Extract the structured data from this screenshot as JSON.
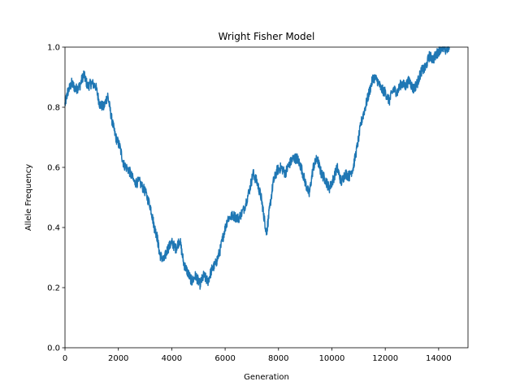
{
  "chart_data": {
    "type": "line",
    "title": "Wright Fisher Model",
    "xlabel": "Generation",
    "ylabel": "Allele Frequency",
    "xlim": [
      0,
      15100
    ],
    "ylim": [
      0.0,
      1.0
    ],
    "xticks": [
      0,
      2000,
      4000,
      6000,
      8000,
      10000,
      12000,
      14000
    ],
    "yticks": [
      0.0,
      0.2,
      0.4,
      0.6,
      0.8,
      1.0
    ],
    "xtick_labels": [
      "0",
      "2000",
      "4000",
      "6000",
      "8000",
      "10000",
      "12000",
      "14000"
    ],
    "ytick_labels": [
      "0.0",
      "0.2",
      "0.4",
      "0.6",
      "0.8",
      "1.0"
    ],
    "grid": false,
    "series": [
      {
        "color": "#1f77b4",
        "x": [
          0,
          100,
          250,
          400,
          550,
          700,
          850,
          1000,
          1150,
          1300,
          1450,
          1600,
          1750,
          1900,
          2050,
          2200,
          2400,
          2600,
          2800,
          3000,
          3200,
          3350,
          3450,
          3550,
          3700,
          3850,
          4000,
          4150,
          4300,
          4450,
          4600,
          4750,
          4900,
          5050,
          5200,
          5350,
          5500,
          5650,
          5800,
          5950,
          6100,
          6300,
          6500,
          6700,
          6900,
          7050,
          7200,
          7350,
          7450,
          7550,
          7650,
          7800,
          7950,
          8100,
          8250,
          8400,
          8550,
          8700,
          8850,
          9000,
          9150,
          9300,
          9450,
          9600,
          9750,
          9900,
          10050,
          10200,
          10350,
          10500,
          10650,
          10800,
          10950,
          11100,
          11250,
          11400,
          11550,
          11700,
          11850,
          12000,
          12150,
          12300,
          12450,
          12600,
          12750,
          12900,
          13050,
          13200,
          13350,
          13500,
          13650,
          13800,
          13950,
          14100,
          14250,
          14400
        ],
        "y": [
          0.81,
          0.85,
          0.88,
          0.86,
          0.87,
          0.91,
          0.87,
          0.88,
          0.87,
          0.81,
          0.8,
          0.84,
          0.76,
          0.7,
          0.67,
          0.61,
          0.59,
          0.55,
          0.55,
          0.52,
          0.47,
          0.4,
          0.37,
          0.31,
          0.29,
          0.33,
          0.35,
          0.33,
          0.36,
          0.28,
          0.25,
          0.22,
          0.24,
          0.21,
          0.24,
          0.22,
          0.26,
          0.28,
          0.32,
          0.38,
          0.43,
          0.44,
          0.43,
          0.46,
          0.52,
          0.58,
          0.55,
          0.5,
          0.44,
          0.38,
          0.45,
          0.55,
          0.59,
          0.6,
          0.58,
          0.61,
          0.63,
          0.63,
          0.6,
          0.55,
          0.51,
          0.6,
          0.63,
          0.58,
          0.56,
          0.53,
          0.56,
          0.6,
          0.55,
          0.58,
          0.57,
          0.6,
          0.67,
          0.75,
          0.8,
          0.85,
          0.9,
          0.89,
          0.86,
          0.85,
          0.82,
          0.86,
          0.85,
          0.88,
          0.87,
          0.89,
          0.86,
          0.88,
          0.92,
          0.93,
          0.97,
          0.96,
          0.98,
          1.0,
          0.99,
          1.0
        ]
      }
    ]
  }
}
